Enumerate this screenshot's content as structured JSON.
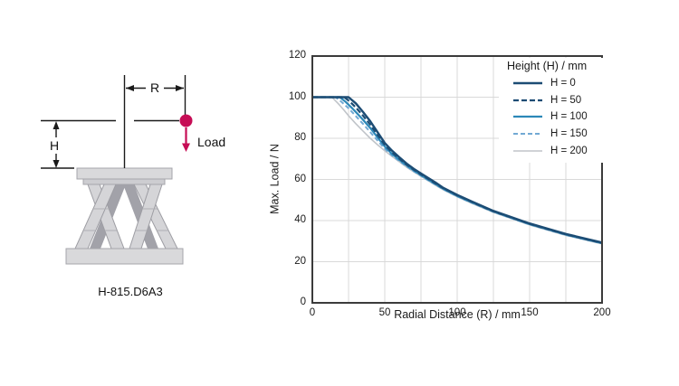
{
  "diagram": {
    "model_label": "H-815.D6A3",
    "radius_label": "R",
    "height_label": "H",
    "load_label": "Load",
    "accent_color": "#c60d55"
  },
  "chart_data": {
    "type": "line",
    "title": "",
    "xlabel": "Radial Distance (R) / mm",
    "ylabel": "Max. Load / N",
    "xlim": [
      0,
      200
    ],
    "ylim": [
      0,
      120
    ],
    "x_ticks": [
      0,
      50,
      100,
      150,
      200
    ],
    "y_ticks": [
      0,
      20,
      40,
      60,
      80,
      100,
      120
    ],
    "x_minor_grid_step": 25,
    "grid": true,
    "grid_color": "#d9d9d9",
    "axis_color": "#3b3b3b",
    "legend_title": "Height (H) / mm",
    "legend_position": "top-right",
    "series": [
      {
        "name": "H = 200",
        "color": "#c0c4c9",
        "dash": "solid",
        "width": 1.6,
        "points": [
          [
            0,
            100
          ],
          [
            13.5,
            100
          ],
          [
            18,
            96.8
          ],
          [
            22,
            93.6
          ],
          [
            25,
            91
          ],
          [
            30,
            87.1
          ],
          [
            35,
            83.5
          ],
          [
            40,
            80
          ],
          [
            45,
            76.9
          ],
          [
            50,
            74
          ],
          [
            55,
            71.2
          ],
          [
            60,
            68.6
          ],
          [
            65,
            66
          ],
          [
            70,
            63.7
          ],
          [
            75,
            61.5
          ],
          [
            80,
            59.4
          ],
          [
            85,
            57.2
          ],
          [
            90,
            55.1
          ],
          [
            100,
            51.6
          ],
          [
            110,
            48.4
          ],
          [
            125,
            44
          ],
          [
            150,
            37.9
          ],
          [
            175,
            32.8
          ],
          [
            200,
            28.7
          ]
        ]
      },
      {
        "name": "H = 150",
        "color": "#72a9d4",
        "dash": "5 3",
        "width": 2,
        "points": [
          [
            0,
            100
          ],
          [
            16,
            100
          ],
          [
            20,
            97.8
          ],
          [
            25,
            94.6
          ],
          [
            30,
            90.8
          ],
          [
            35,
            87
          ],
          [
            40,
            83
          ],
          [
            45,
            78.9
          ],
          [
            50,
            75
          ],
          [
            55,
            71.7
          ],
          [
            60,
            69
          ],
          [
            65,
            66.4
          ],
          [
            70,
            64
          ],
          [
            75,
            61.8
          ],
          [
            80,
            59.6
          ],
          [
            85,
            57.5
          ],
          [
            90,
            55.4
          ],
          [
            100,
            51.8
          ],
          [
            110,
            48.7
          ],
          [
            125,
            44.2
          ],
          [
            150,
            38.1
          ],
          [
            175,
            33
          ],
          [
            200,
            28.9
          ]
        ]
      },
      {
        "name": "H = 100",
        "color": "#2c88b8",
        "dash": "solid",
        "width": 2.2,
        "points": [
          [
            0,
            100
          ],
          [
            19,
            100
          ],
          [
            23,
            97.7
          ],
          [
            27,
            95
          ],
          [
            30,
            92.8
          ],
          [
            35,
            89
          ],
          [
            40,
            85
          ],
          [
            45,
            80.5
          ],
          [
            50,
            76
          ],
          [
            55,
            72.4
          ],
          [
            60,
            69.6
          ],
          [
            65,
            66.9
          ],
          [
            70,
            64.4
          ],
          [
            75,
            62.1
          ],
          [
            80,
            59.9
          ],
          [
            85,
            57.8
          ],
          [
            90,
            55.6
          ],
          [
            100,
            52
          ],
          [
            110,
            48.9
          ],
          [
            125,
            44.4
          ],
          [
            150,
            38.3
          ],
          [
            175,
            33.2
          ],
          [
            200,
            29
          ]
        ]
      },
      {
        "name": "H = 50",
        "color": "#1c4c74",
        "dash": "6 3",
        "width": 2.2,
        "points": [
          [
            0,
            100
          ],
          [
            22,
            100
          ],
          [
            26,
            97.8
          ],
          [
            30,
            95
          ],
          [
            35,
            91
          ],
          [
            40,
            86.6
          ],
          [
            45,
            81.7
          ],
          [
            50,
            76.9
          ],
          [
            55,
            73.2
          ],
          [
            60,
            70.2
          ],
          [
            65,
            67.3
          ],
          [
            70,
            64.8
          ],
          [
            75,
            62.5
          ],
          [
            80,
            60.3
          ],
          [
            85,
            58.1
          ],
          [
            90,
            55.9
          ],
          [
            100,
            52.3
          ],
          [
            110,
            49.1
          ],
          [
            125,
            44.5
          ],
          [
            150,
            38.4
          ],
          [
            175,
            33.3
          ],
          [
            200,
            29.1
          ]
        ]
      },
      {
        "name": "H = 0",
        "color": "#1c4c74",
        "dash": "solid",
        "width": 2.4,
        "points": [
          [
            0,
            100
          ],
          [
            25,
            100
          ],
          [
            30,
            97
          ],
          [
            35,
            92.8
          ],
          [
            40,
            88.3
          ],
          [
            45,
            83
          ],
          [
            50,
            77.7
          ],
          [
            55,
            74
          ],
          [
            60,
            70.8
          ],
          [
            65,
            67.8
          ],
          [
            70,
            65.2
          ],
          [
            75,
            62.9
          ],
          [
            80,
            60.7
          ],
          [
            85,
            58.5
          ],
          [
            90,
            56.1
          ],
          [
            100,
            52.5
          ],
          [
            110,
            49.3
          ],
          [
            125,
            44.7
          ],
          [
            150,
            38.6
          ],
          [
            175,
            33.5
          ],
          [
            200,
            29.3
          ]
        ]
      }
    ],
    "legend_order": [
      "H = 0",
      "H = 50",
      "H = 100",
      "H = 150",
      "H = 200"
    ]
  }
}
